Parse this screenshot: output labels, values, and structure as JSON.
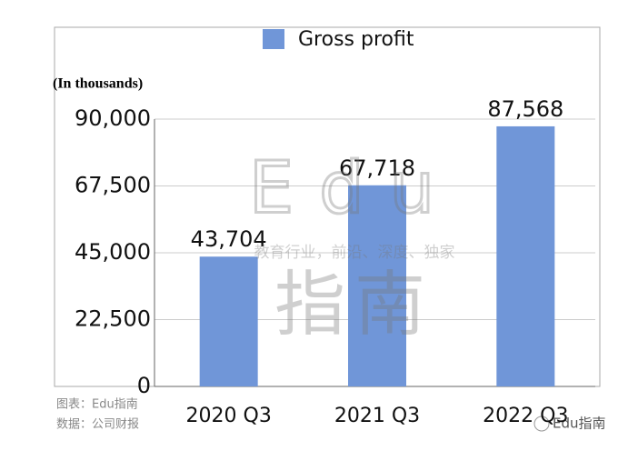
{
  "chart_data": {
    "type": "bar",
    "legend_label_position": "top",
    "unit_note": "(In thousands)",
    "categories": [
      "2020 Q3",
      "2021 Q3",
      "2022 Q3"
    ],
    "series": [
      {
        "name": "Gross profit",
        "color": "#7096d8",
        "values": [
          43704,
          67718,
          87568
        ],
        "value_labels": [
          "43,704",
          "67,718",
          "87,568"
        ]
      }
    ],
    "ylim": [
      0,
      90000
    ],
    "yticks": [
      0,
      {
        "value": 22500,
        "label": "22,500"
      },
      {
        "value": 45000,
        "label": "45,000"
      },
      {
        "value": 67500,
        "label": "67,500"
      },
      {
        "value": 90000,
        "label": "90,000"
      }
    ],
    "grid": true,
    "watermark": [
      "Edu",
      "指南",
      "教育行业，前沿、深度、独家"
    ],
    "source_lines": [
      "图表：Edu指南",
      "数据：公司财报"
    ],
    "brand": "Edu指南"
  }
}
